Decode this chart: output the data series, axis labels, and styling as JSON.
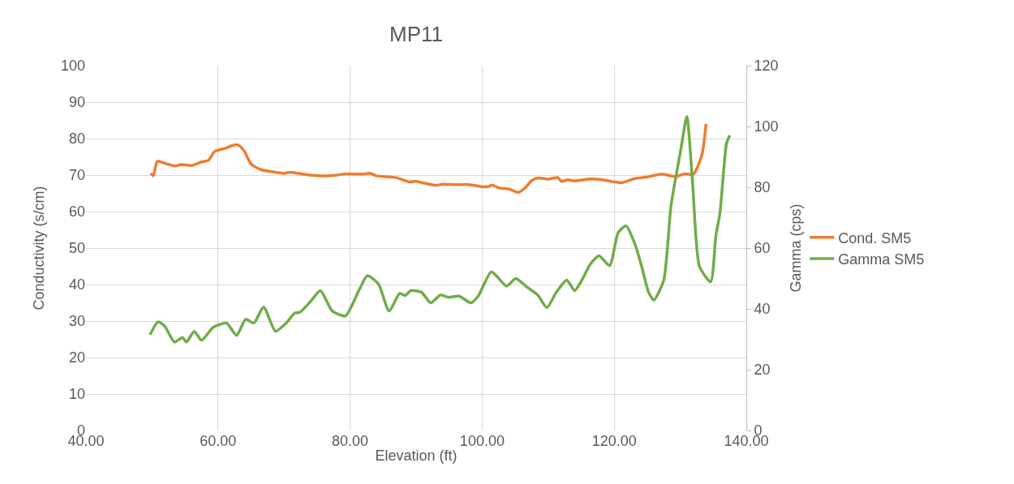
{
  "chart_data": {
    "type": "line",
    "title": "MP11",
    "xlabel": "Elevation (ft)",
    "ylabel": "Conductivity (s/cm)",
    "y2label": "Gamma (cps)",
    "xlim": [
      40,
      140
    ],
    "xticks": [
      {
        "value": 40,
        "label": "40.00"
      },
      {
        "value": 60,
        "label": "60.00"
      },
      {
        "value": 80,
        "label": "80.00"
      },
      {
        "value": 100,
        "label": "100.00"
      },
      {
        "value": 120,
        "label": "120.00"
      },
      {
        "value": 140,
        "label": "140.00"
      }
    ],
    "ylim": [
      0,
      100
    ],
    "yticks": [
      0,
      10,
      20,
      30,
      40,
      50,
      60,
      70,
      80,
      90,
      100
    ],
    "y2lim": [
      0,
      120
    ],
    "y2ticks": [
      0,
      20,
      40,
      60,
      80,
      100,
      120
    ],
    "grid": true,
    "legend": "right",
    "series": [
      {
        "name": "Cond. SM5",
        "color": "#ed7d31",
        "x": [
          49.8,
          50.2,
          50.8,
          52,
          53.5,
          54.5,
          56,
          57.5,
          58.5,
          59.5,
          61,
          62,
          63,
          64,
          65,
          66.5,
          68,
          70,
          71,
          72,
          74,
          76,
          78,
          79,
          82,
          83,
          84,
          86,
          87,
          89,
          90,
          91,
          93,
          94,
          96,
          98,
          100,
          101,
          101.5,
          102.5,
          104,
          105.5,
          106.5,
          107.5,
          108.5,
          110,
          111.5,
          112,
          113,
          114,
          116,
          118,
          119.5,
          121.1,
          123,
          125,
          127.2,
          129.3,
          130.5,
          132,
          133.3,
          133.9
        ],
        "values": [
          70.5,
          69.8,
          73.8,
          73.2,
          72.5,
          72.9,
          72.6,
          73.6,
          74,
          76.5,
          77.3,
          78,
          78.3,
          76.5,
          73,
          71.5,
          71,
          70.5,
          70.8,
          70.5,
          70,
          69.8,
          70,
          70.3,
          70.3,
          70.5,
          69.8,
          69.5,
          69.3,
          68.1,
          68.3,
          67.9,
          67.2,
          67.5,
          67.4,
          67.4,
          66.8,
          66.9,
          67.3,
          66.5,
          66.2,
          65.3,
          66.5,
          68.5,
          69.2,
          68.9,
          69.3,
          68.3,
          68.7,
          68.4,
          68.9,
          68.8,
          68.3,
          67.9,
          69,
          69.5,
          70.3,
          69.6,
          70.3,
          70.3,
          75.7,
          84.0
        ]
      },
      {
        "name": "Gamma SM5",
        "color": "#70ad47",
        "axis": "y2",
        "x": [
          49.7,
          50.9,
          51.9,
          53.4,
          54.6,
          55.2,
          56.4,
          57.5,
          59.3,
          61.3,
          62.8,
          64.2,
          65.4,
          66.9,
          68.7,
          70.3,
          71.6,
          72.4,
          74.0,
          75.5,
          77.3,
          79.3,
          81.4,
          82.6,
          84.3,
          85.9,
          87.5,
          88.3,
          89.2,
          90.8,
          92.2,
          93.7,
          94.9,
          96.5,
          98.3,
          99.4,
          101.4,
          103.7,
          105.1,
          106.7,
          108.4,
          109.8,
          111.2,
          112.8,
          114.0,
          115.1,
          116.4,
          117.7,
          119.3,
          120.6,
          121.8,
          123.1,
          124.1,
          125.2,
          126.0,
          127.5,
          128.6,
          130.1,
          131.0,
          131.9,
          132.9,
          134.6,
          135.4,
          136.0,
          137.0,
          137.5
        ],
        "values": [
          31.5,
          35.7,
          34.4,
          29.1,
          30.6,
          29.1,
          32.6,
          29.7,
          34.0,
          35.3,
          31.3,
          36.6,
          35.3,
          40.6,
          32.6,
          35.3,
          38.6,
          38.9,
          42.4,
          46.0,
          39.3,
          37.7,
          46.4,
          50.9,
          48.2,
          39.3,
          45.1,
          44.4,
          46.0,
          45.5,
          42.0,
          44.6,
          43.8,
          44.2,
          42.0,
          44.2,
          52.2,
          47.5,
          50.0,
          47.3,
          44.6,
          40.4,
          45.4,
          49.5,
          46.0,
          49.5,
          54.8,
          57.5,
          54.2,
          65.1,
          67.3,
          61.5,
          54.4,
          45.5,
          42.9,
          49.5,
          74.0,
          92.6,
          103.3,
          80.2,
          54.0,
          48.9,
          64.2,
          71.3,
          94.4,
          97.1
        ]
      }
    ]
  }
}
